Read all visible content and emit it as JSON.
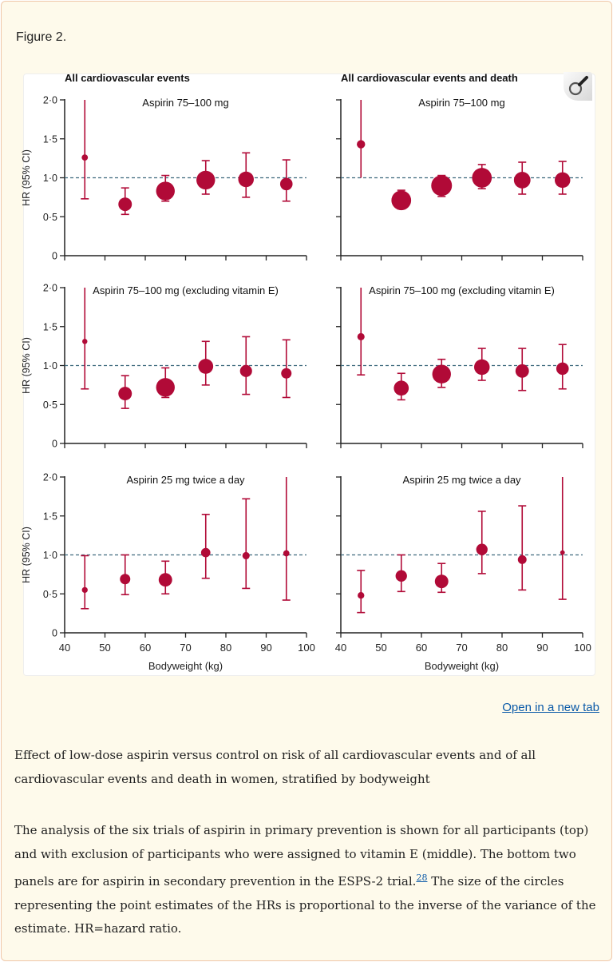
{
  "figure_label": "Figure 2.",
  "open_link": "Open in a new tab",
  "caption_title": "Effect of low-dose aspirin versus control on risk of all cardiovascular events and of all cardiovascular events and death in women, stratified by bodyweight",
  "caption_body_1": "The analysis of the six trials of aspirin in primary prevention is shown for all participants (top) and with exclusion of participants who were assigned to vitamin E (middle). The bottom two panels are for aspirin in secondary prevention in the ESPS-2 trial.",
  "caption_ref": "28",
  "caption_body_2": " The size of the circles representing the point estimates of the HRs is proportional to the inverse of the variance of the estimate. HR=hazard ratio.",
  "colors": {
    "marker": "#b10a37",
    "reference_line": "#3e6a7e",
    "axis": "#222222"
  },
  "icons": {
    "zoom": "magnifier-icon"
  },
  "chart_data": {
    "type": "scatter",
    "column_titles": [
      "All cardiovascular events",
      "All cardiovascular events and death"
    ],
    "ylabel": "HR (95% CI)",
    "xlabel": "Bodyweight (kg)",
    "xlim": [
      40,
      100
    ],
    "xticks": [
      40,
      50,
      60,
      70,
      80,
      90,
      100
    ],
    "ylim": [
      0,
      2.0
    ],
    "yticks": [
      "0",
      "0·5",
      "1·0",
      "1·5",
      "2·0"
    ],
    "ytick_values": [
      0,
      0.5,
      1.0,
      1.5,
      2.0
    ],
    "reference_line": 1.0,
    "x": [
      45,
      55,
      65,
      75,
      85,
      95
    ],
    "panels": [
      {
        "row": 0,
        "col": 0,
        "title": "Aspirin 75–100 mg",
        "hr": [
          1.26,
          0.66,
          0.83,
          0.97,
          0.98,
          0.92
        ],
        "lower": [
          0.73,
          0.53,
          0.7,
          0.79,
          0.75,
          0.7
        ],
        "upper": [
          2.0,
          0.87,
          1.03,
          1.22,
          1.32,
          1.23
        ],
        "relative_weight": [
          0.3,
          0.65,
          0.9,
          0.9,
          0.75,
          0.6
        ]
      },
      {
        "row": 0,
        "col": 1,
        "title": "Aspirin 75–100 mg",
        "hr": [
          1.43,
          0.71,
          0.9,
          1.0,
          0.97,
          0.97
        ],
        "lower": [
          1.0,
          0.6,
          0.76,
          0.86,
          0.79,
          0.79
        ],
        "upper": [
          2.0,
          0.84,
          1.03,
          1.17,
          1.2,
          1.21
        ],
        "relative_weight": [
          0.4,
          0.95,
          1.0,
          0.95,
          0.8,
          0.75
        ]
      },
      {
        "row": 1,
        "col": 0,
        "title": "Aspirin 75–100 mg (excluding vitamin E)",
        "hr": [
          1.31,
          0.64,
          0.72,
          0.99,
          0.93,
          0.9
        ],
        "lower": [
          0.7,
          0.45,
          0.59,
          0.75,
          0.63,
          0.59
        ],
        "upper": [
          2.0,
          0.87,
          0.97,
          1.31,
          1.37,
          1.33
        ],
        "relative_weight": [
          0.25,
          0.65,
          0.9,
          0.72,
          0.58,
          0.5
        ]
      },
      {
        "row": 1,
        "col": 1,
        "title": "Aspirin 75–100 mg (excluding vitamin E)",
        "hr": [
          1.37,
          0.71,
          0.89,
          0.98,
          0.93,
          0.96
        ],
        "lower": [
          0.88,
          0.56,
          0.72,
          0.81,
          0.68,
          0.7
        ],
        "upper": [
          2.0,
          0.9,
          1.08,
          1.22,
          1.22,
          1.27
        ],
        "relative_weight": [
          0.35,
          0.72,
          0.9,
          0.75,
          0.65,
          0.6
        ]
      },
      {
        "row": 2,
        "col": 0,
        "title": "Aspirin 25 mg twice a day",
        "hr": [
          0.55,
          0.69,
          0.68,
          1.03,
          0.99,
          1.02
        ],
        "lower": [
          0.31,
          0.49,
          0.5,
          0.7,
          0.57,
          0.42
        ],
        "upper": [
          0.99,
          1.0,
          0.92,
          1.52,
          1.72,
          2.0
        ],
        "relative_weight": [
          0.28,
          0.5,
          0.65,
          0.45,
          0.35,
          0.3
        ]
      },
      {
        "row": 2,
        "col": 1,
        "title": "Aspirin 25 mg twice a day",
        "hr": [
          0.48,
          0.73,
          0.66,
          1.07,
          0.94,
          1.03
        ],
        "lower": [
          0.26,
          0.53,
          0.52,
          0.76,
          0.55,
          0.43
        ],
        "upper": [
          0.8,
          1.0,
          0.89,
          1.56,
          1.63,
          2.0
        ],
        "relative_weight": [
          0.32,
          0.55,
          0.65,
          0.55,
          0.42,
          0.22
        ]
      }
    ]
  }
}
